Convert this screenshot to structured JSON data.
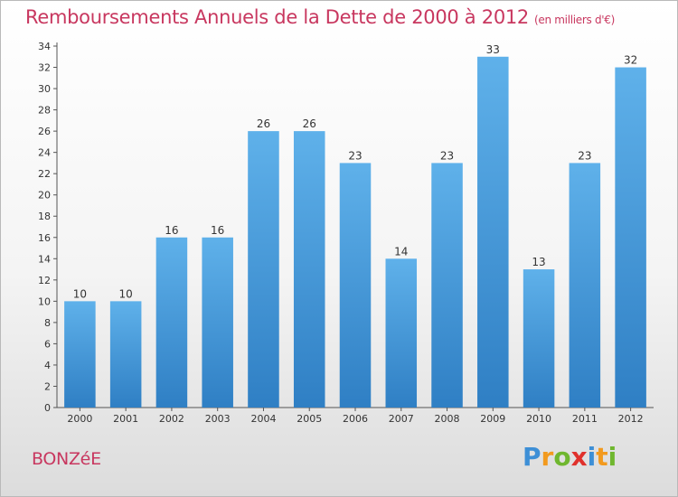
{
  "title": "Remboursements Annuels de la Dette de 2000 à 2012",
  "subtitle": "(en milliers d'€)",
  "commune": "BONZéE",
  "logo": {
    "letters": [
      "P",
      "r",
      "o",
      "x",
      "i",
      "t",
      "i"
    ],
    "colors": [
      "#3d8fd6",
      "#f29a1e",
      "#6fb72f",
      "#e0312c",
      "#3d8fd6",
      "#f29a1e",
      "#6fb72f"
    ]
  },
  "colors": {
    "bar_top": "#5fb1ea",
    "bar_bottom": "#2f7fc4",
    "accent": "#c8375f"
  },
  "chart_data": {
    "type": "bar",
    "title": "Remboursements Annuels de la Dette de 2000 à 2012",
    "subtitle": "(en milliers d'€)",
    "xlabel": "",
    "ylabel": "",
    "categories": [
      "2000",
      "2001",
      "2002",
      "2003",
      "2004",
      "2005",
      "2006",
      "2007",
      "2008",
      "2009",
      "2010",
      "2011",
      "2012"
    ],
    "values": [
      10,
      10,
      16,
      16,
      26,
      26,
      23,
      14,
      23,
      33,
      13,
      23,
      32
    ],
    "ylim": [
      0,
      34
    ],
    "yticks": [
      0,
      2,
      4,
      6,
      8,
      10,
      12,
      14,
      16,
      18,
      20,
      22,
      24,
      26,
      28,
      30,
      32,
      34
    ],
    "grid": false,
    "data_labels": true
  }
}
